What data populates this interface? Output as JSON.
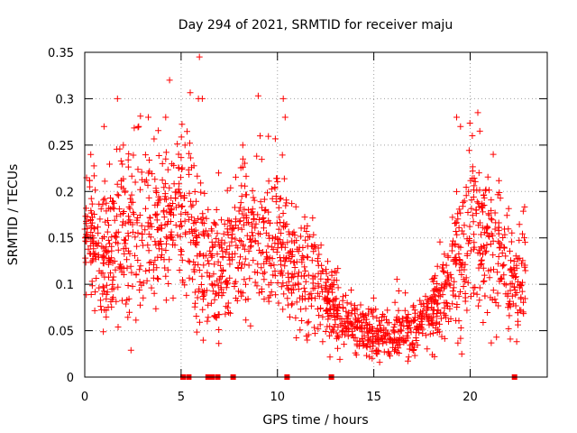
{
  "chart_data": {
    "type": "scatter",
    "title": "Day 294 of 2021, SRMTID for receiver maju",
    "xlabel": "GPS time / hours",
    "ylabel": "SRMTID / TECUs",
    "xlim": [
      0,
      24
    ],
    "ylim": [
      0,
      0.35
    ],
    "xticks": [
      0,
      5,
      10,
      15,
      20
    ],
    "xtick_labels": [
      "0",
      "5",
      "10",
      "15",
      "20"
    ],
    "yticks": [
      0,
      0.05,
      0.1,
      0.15,
      0.2,
      0.25,
      0.3,
      0.35
    ],
    "ytick_labels": [
      "0",
      "0.05",
      "0.1",
      "0.15",
      "0.2",
      "0.25",
      "0.3",
      "0.35"
    ],
    "grid": true,
    "marker": "+",
    "color": "#ff0000",
    "series": [
      {
        "name": "SRMTID",
        "trend": [
          {
            "t": 0.0,
            "mean": 0.16,
            "sd": 0.035
          },
          {
            "t": 1.0,
            "mean": 0.135,
            "sd": 0.04
          },
          {
            "t": 2.0,
            "mean": 0.15,
            "sd": 0.045
          },
          {
            "t": 3.0,
            "mean": 0.16,
            "sd": 0.045
          },
          {
            "t": 4.0,
            "mean": 0.17,
            "sd": 0.045
          },
          {
            "t": 5.0,
            "mean": 0.18,
            "sd": 0.045
          },
          {
            "t": 6.0,
            "mean": 0.14,
            "sd": 0.045
          },
          {
            "t": 7.0,
            "mean": 0.12,
            "sd": 0.035
          },
          {
            "t": 8.0,
            "mean": 0.14,
            "sd": 0.04
          },
          {
            "t": 9.0,
            "mean": 0.15,
            "sd": 0.04
          },
          {
            "t": 10.0,
            "mean": 0.15,
            "sd": 0.04
          },
          {
            "t": 11.0,
            "mean": 0.12,
            "sd": 0.035
          },
          {
            "t": 12.0,
            "mean": 0.1,
            "sd": 0.03
          },
          {
            "t": 13.0,
            "mean": 0.07,
            "sd": 0.02
          },
          {
            "t": 14.0,
            "mean": 0.05,
            "sd": 0.015
          },
          {
            "t": 15.0,
            "mean": 0.045,
            "sd": 0.015
          },
          {
            "t": 16.0,
            "mean": 0.045,
            "sd": 0.015
          },
          {
            "t": 17.0,
            "mean": 0.05,
            "sd": 0.015
          },
          {
            "t": 18.0,
            "mean": 0.07,
            "sd": 0.02
          },
          {
            "t": 19.0,
            "mean": 0.1,
            "sd": 0.03
          },
          {
            "t": 20.0,
            "mean": 0.16,
            "sd": 0.05
          },
          {
            "t": 21.0,
            "mean": 0.14,
            "sd": 0.04
          },
          {
            "t": 22.0,
            "mean": 0.11,
            "sd": 0.035
          },
          {
            "t": 22.9,
            "mean": 0.1,
            "sd": 0.03
          }
        ],
        "points_per_hour": 80,
        "time_range": [
          0.0,
          22.9
        ],
        "peaks": [
          {
            "x": 1.0,
            "y": 0.27
          },
          {
            "x": 1.7,
            "y": 0.3
          },
          {
            "x": 2.0,
            "y": 0.25
          },
          {
            "x": 2.8,
            "y": 0.27
          },
          {
            "x": 3.3,
            "y": 0.28
          },
          {
            "x": 4.2,
            "y": 0.28
          },
          {
            "x": 4.4,
            "y": 0.32
          },
          {
            "x": 5.2,
            "y": 0.25
          },
          {
            "x": 5.9,
            "y": 0.3
          },
          {
            "x": 5.95,
            "y": 0.345
          },
          {
            "x": 6.1,
            "y": 0.3
          },
          {
            "x": 8.2,
            "y": 0.25
          },
          {
            "x": 9.0,
            "y": 0.303
          },
          {
            "x": 9.1,
            "y": 0.26
          },
          {
            "x": 10.3,
            "y": 0.3
          },
          {
            "x": 10.4,
            "y": 0.28
          },
          {
            "x": 19.3,
            "y": 0.28
          },
          {
            "x": 19.5,
            "y": 0.27
          },
          {
            "x": 20.4,
            "y": 0.285
          },
          {
            "x": 20.5,
            "y": 0.265
          },
          {
            "x": 21.2,
            "y": 0.24
          }
        ],
        "zeros": [
          5.1,
          5.4,
          6.4,
          6.5,
          6.6,
          6.9,
          7.7,
          10.5,
          12.8,
          22.3
        ]
      }
    ]
  }
}
